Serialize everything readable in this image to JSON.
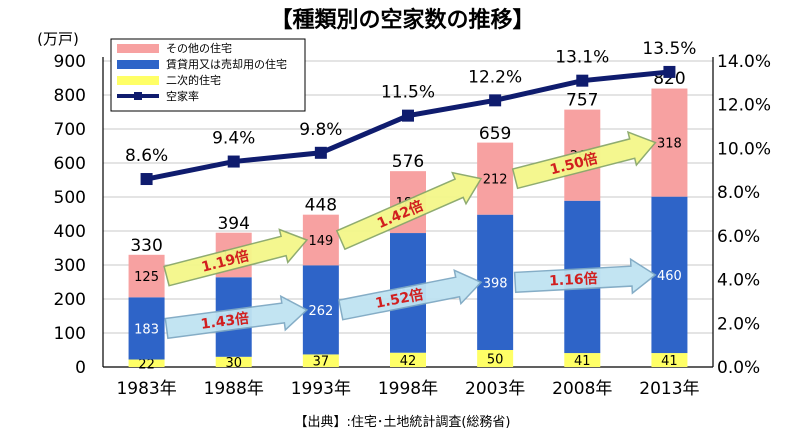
{
  "chart_data": {
    "type": "bar",
    "title": "【種類別の空家数の推移】",
    "source": "【出典】:住宅･土地統計調査(総務省)",
    "y_unit_label": "(万戸)",
    "categories": [
      "1983年",
      "1988年",
      "1993年",
      "1998年",
      "2003年",
      "2008年",
      "2013年"
    ],
    "stacked": true,
    "series": [
      {
        "name": "二次的住宅",
        "values": [
          22,
          30,
          37,
          42,
          50,
          41,
          41
        ],
        "color": "#ffff66"
      },
      {
        "name": "賃貸用又は売却用の住宅",
        "values": [
          183,
          234,
          262,
          352,
          398,
          448,
          460
        ],
        "color": "#2e64c8"
      },
      {
        "name": "その他の住宅",
        "values": [
          125,
          131,
          149,
          182,
          212,
          268,
          318
        ],
        "color": "#f7a1a1"
      }
    ],
    "totals": [
      330,
      394,
      448,
      576,
      659,
      757,
      820
    ],
    "line_series": {
      "name": "空家率",
      "values": [
        8.6,
        9.4,
        9.8,
        11.5,
        12.2,
        13.1,
        13.5
      ],
      "labels": [
        "8.6%",
        "9.4%",
        "9.8%",
        "11.5%",
        "12.2%",
        "13.1%",
        "13.5%"
      ],
      "color": "#0f1c6e",
      "axis": "right"
    },
    "y_left": {
      "min": 0,
      "max": 900,
      "ticks": [
        0,
        100,
        200,
        300,
        400,
        500,
        600,
        700,
        800,
        900
      ]
    },
    "y_right": {
      "min": 0,
      "max": 14,
      "ticks": [
        "0.0%",
        "2.0%",
        "4.0%",
        "6.0%",
        "8.0%",
        "10.0%",
        "12.0%",
        "14.0%"
      ]
    },
    "legend_position": "top-left",
    "annotations": [
      {
        "text": "1.19倍",
        "series": "その他の住宅",
        "from": "1983年",
        "to": "1993年",
        "style": "yellow"
      },
      {
        "text": "1.42倍",
        "series": "その他の住宅",
        "from": "1993年",
        "to": "2003年",
        "style": "yellow"
      },
      {
        "text": "1.50倍",
        "series": "その他の住宅",
        "from": "2003年",
        "to": "2013年",
        "style": "yellow"
      },
      {
        "text": "1.43倍",
        "series": "賃貸用又は売却用の住宅",
        "from": "1983年",
        "to": "1993年",
        "style": "blue"
      },
      {
        "text": "1.52倍",
        "series": "賃貸用又は売却用の住宅",
        "from": "1993年",
        "to": "2003年",
        "style": "blue"
      },
      {
        "text": "1.16倍",
        "series": "賃貸用又は売却用の住宅",
        "from": "2003年",
        "to": "2013年",
        "style": "blue"
      }
    ]
  }
}
